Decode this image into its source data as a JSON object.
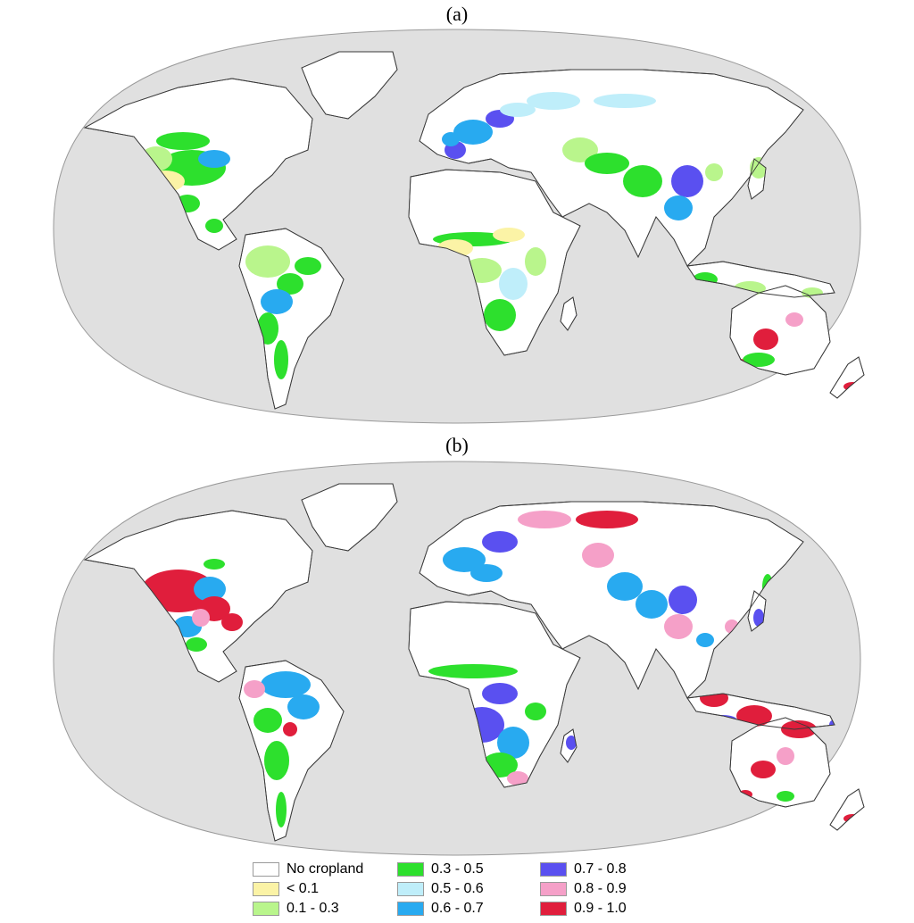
{
  "panels": [
    {
      "id": "a",
      "title": "(a)"
    },
    {
      "id": "b",
      "title": "(b)"
    }
  ],
  "colors": {
    "ocean": "#e0e0e0",
    "land": "#ffffff",
    "border": "#3a3a3a"
  },
  "legend": {
    "items": [
      {
        "label": "No cropland",
        "color": "#ffffff"
      },
      {
        "label": "< 0.1",
        "color": "#fbf3a6"
      },
      {
        "label": "0.1 - 0.3",
        "color": "#b9f58c"
      },
      {
        "label": "0.3 - 0.5",
        "color": "#2de02d"
      },
      {
        "label": "0.5 - 0.6",
        "color": "#bfeefa"
      },
      {
        "label": "0.6 - 0.7",
        "color": "#28aaf0"
      },
      {
        "label": "0.7 - 0.8",
        "color": "#5a50f0"
      },
      {
        "label": "0.8 - 0.9",
        "color": "#f5a0c8"
      },
      {
        "label": "0.9 - 1.0",
        "color": "#e01e3c"
      }
    ]
  }
}
